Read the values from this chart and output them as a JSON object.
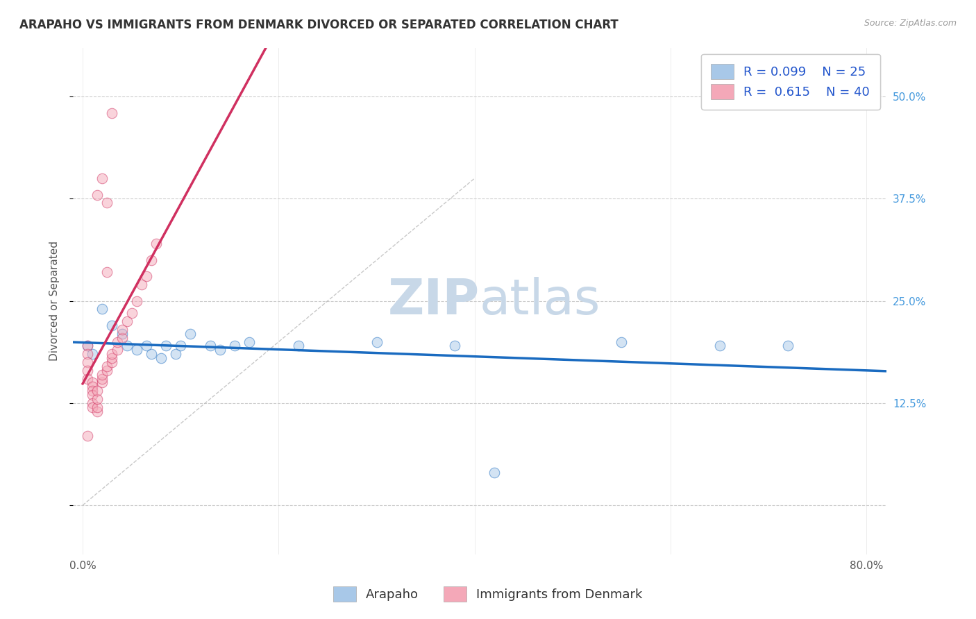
{
  "title": "ARAPAHO VS IMMIGRANTS FROM DENMARK DIVORCED OR SEPARATED CORRELATION CHART",
  "source_text": "Source: ZipAtlas.com",
  "ylabel": "Divorced or Separated",
  "xlim": [
    -0.01,
    0.82
  ],
  "ylim": [
    -0.06,
    0.56
  ],
  "xticks": [
    0.0,
    0.2,
    0.4,
    0.6,
    0.8
  ],
  "xticklabels": [
    "0.0%",
    "",
    "",
    "",
    "80.0%"
  ],
  "yticks": [
    0.0,
    0.125,
    0.25,
    0.375,
    0.5
  ],
  "yticklabels": [
    "",
    "12.5%",
    "25.0%",
    "37.5%",
    "50.0%"
  ],
  "legend_r1": "R = 0.099",
  "legend_n1": "N = 25",
  "legend_r2": "R =  0.615",
  "legend_n2": "N = 40",
  "watermark_zip": "ZIP",
  "watermark_atlas": "atlas",
  "color_blue": "#a8c8e8",
  "color_pink": "#f4a8b8",
  "line_blue": "#1a6bc0",
  "line_pink": "#d03060",
  "arapaho_points": [
    [
      0.005,
      0.195
    ],
    [
      0.01,
      0.185
    ],
    [
      0.02,
      0.24
    ],
    [
      0.03,
      0.22
    ],
    [
      0.04,
      0.21
    ],
    [
      0.045,
      0.195
    ],
    [
      0.055,
      0.19
    ],
    [
      0.065,
      0.195
    ],
    [
      0.07,
      0.185
    ],
    [
      0.08,
      0.18
    ],
    [
      0.085,
      0.195
    ],
    [
      0.095,
      0.185
    ],
    [
      0.1,
      0.195
    ],
    [
      0.11,
      0.21
    ],
    [
      0.13,
      0.195
    ],
    [
      0.14,
      0.19
    ],
    [
      0.155,
      0.195
    ],
    [
      0.17,
      0.2
    ],
    [
      0.22,
      0.195
    ],
    [
      0.3,
      0.2
    ],
    [
      0.38,
      0.195
    ],
    [
      0.55,
      0.2
    ],
    [
      0.65,
      0.195
    ],
    [
      0.72,
      0.195
    ],
    [
      0.42,
      0.04
    ]
  ],
  "denmark_points": [
    [
      0.005,
      0.195
    ],
    [
      0.005,
      0.185
    ],
    [
      0.005,
      0.175
    ],
    [
      0.005,
      0.165
    ],
    [
      0.005,
      0.155
    ],
    [
      0.01,
      0.15
    ],
    [
      0.01,
      0.145
    ],
    [
      0.01,
      0.14
    ],
    [
      0.01,
      0.135
    ],
    [
      0.01,
      0.125
    ],
    [
      0.01,
      0.12
    ],
    [
      0.015,
      0.115
    ],
    [
      0.015,
      0.12
    ],
    [
      0.015,
      0.13
    ],
    [
      0.015,
      0.14
    ],
    [
      0.02,
      0.15
    ],
    [
      0.02,
      0.155
    ],
    [
      0.02,
      0.16
    ],
    [
      0.025,
      0.165
    ],
    [
      0.025,
      0.17
    ],
    [
      0.03,
      0.175
    ],
    [
      0.03,
      0.18
    ],
    [
      0.03,
      0.185
    ],
    [
      0.035,
      0.19
    ],
    [
      0.035,
      0.2
    ],
    [
      0.04,
      0.205
    ],
    [
      0.04,
      0.215
    ],
    [
      0.045,
      0.225
    ],
    [
      0.05,
      0.235
    ],
    [
      0.055,
      0.25
    ],
    [
      0.06,
      0.27
    ],
    [
      0.065,
      0.28
    ],
    [
      0.07,
      0.3
    ],
    [
      0.075,
      0.32
    ],
    [
      0.015,
      0.38
    ],
    [
      0.02,
      0.4
    ],
    [
      0.025,
      0.285
    ],
    [
      0.03,
      0.48
    ],
    [
      0.025,
      0.37
    ],
    [
      0.005,
      0.085
    ]
  ],
  "title_fontsize": 12,
  "axis_label_fontsize": 11,
  "tick_fontsize": 11,
  "legend_fontsize": 13,
  "scatter_size": 110,
  "scatter_alpha": 0.5
}
